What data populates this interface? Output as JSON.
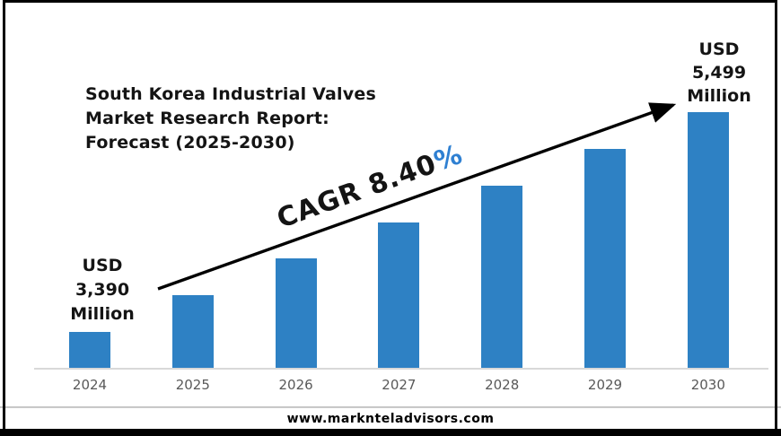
{
  "page": {
    "footer_url": "www.marknteladvisors.com"
  },
  "chart_data": {
    "type": "bar",
    "title": "South Korea Industrial Valves Market Research Report: Forecast (2025-2030)",
    "title_lines": [
      "South Korea Industrial Valves",
      "Market Research Report:",
      "Forecast (2025-2030)"
    ],
    "categories": [
      "2024",
      "2025",
      "2026",
      "2027",
      "2028",
      "2029",
      "2030"
    ],
    "values": [
      3390,
      3675,
      3984,
      4318,
      4681,
      5074,
      5499
    ],
    "values_unit": "USD Million",
    "labeled_points": {
      "2024": "USD 3,390 Million",
      "2030": "USD 5,499 Million"
    },
    "first_bar_label_lines": [
      "USD",
      "3,390",
      "Million"
    ],
    "last_bar_label_lines": [
      "USD",
      "5,499",
      "Million"
    ],
    "annotation": {
      "cagr_prefix": "CAGR 8.40",
      "percent": "%",
      "full": "CAGR 8.40%"
    },
    "xlabel": "",
    "ylabel": "",
    "y_axis_visible": false,
    "gridlines": false,
    "legend": false,
    "trend_arrow": true,
    "bar_height_model": "linear-by-index",
    "bar_color": "#2e81c4",
    "percent_color": "#2f80d2",
    "axis_line_color": "#d9d9d9",
    "tick_color": "#595959",
    "text_color": "#141414",
    "arrow_color": "#000000"
  }
}
